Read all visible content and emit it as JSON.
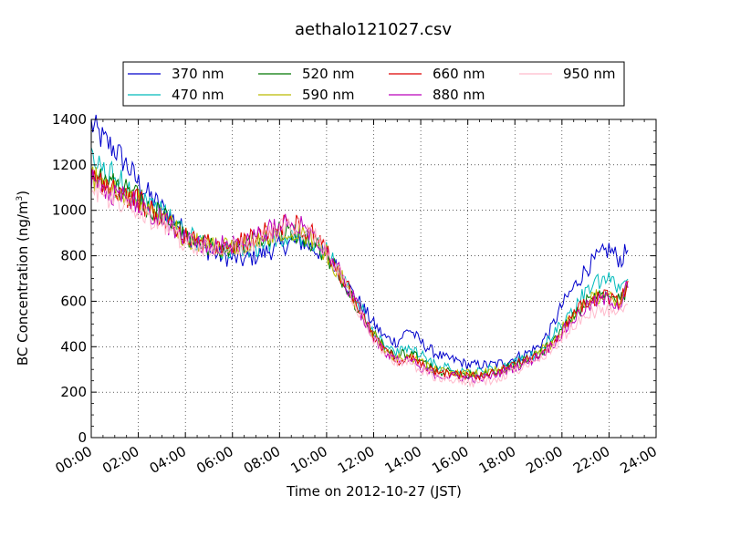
{
  "chart_data": {
    "type": "line",
    "title": "aethalo121027.csv",
    "xlabel": "Time on 2012-10-27 (JST)",
    "ylabel_main": "BC Concentration (ng/m",
    "ylabel_sup": "3",
    "ylabel_close": ")",
    "xlim_hours": [
      0,
      24
    ],
    "ylim": [
      0,
      1400
    ],
    "grid": true,
    "legend_position": "top-center",
    "x_ticks": [
      "00:00",
      "02:00",
      "04:00",
      "06:00",
      "08:00",
      "10:00",
      "12:00",
      "14:00",
      "16:00",
      "18:00",
      "20:00",
      "22:00",
      "24:00"
    ],
    "y_ticks": [
      "0",
      "200",
      "400",
      "600",
      "800",
      "1000",
      "1200",
      "1400"
    ],
    "x_hours": [
      0,
      0.5,
      1,
      1.5,
      2,
      2.5,
      3,
      3.5,
      4,
      4.5,
      5,
      5.5,
      6,
      6.5,
      7,
      7.5,
      8,
      8.5,
      9,
      9.5,
      10,
      10.5,
      11,
      11.5,
      12,
      12.5,
      13,
      13.5,
      14,
      14.5,
      15,
      15.5,
      16,
      16.5,
      17,
      17.5,
      18,
      18.5,
      19,
      19.5,
      20,
      20.5,
      21,
      21.5,
      22,
      22.5,
      22.8
    ],
    "series": [
      {
        "name": "370 nm",
        "color": "#0000cc",
        "values": [
          1380,
          1310,
          1270,
          1200,
          1120,
          1060,
          1010,
          960,
          900,
          860,
          820,
          800,
          790,
          780,
          800,
          820,
          840,
          860,
          860,
          830,
          800,
          740,
          650,
          580,
          500,
          440,
          420,
          480,
          420,
          380,
          350,
          340,
          320,
          320,
          320,
          330,
          350,
          370,
          400,
          470,
          580,
          660,
          740,
          790,
          830,
          780,
          830
        ]
      },
      {
        "name": "470 nm",
        "color": "#00bbbb",
        "values": [
          1220,
          1180,
          1150,
          1110,
          1070,
          1030,
          990,
          950,
          890,
          870,
          850,
          830,
          820,
          820,
          840,
          860,
          880,
          890,
          890,
          860,
          820,
          740,
          640,
          560,
          470,
          400,
          370,
          400,
          370,
          330,
          310,
          300,
          290,
          290,
          300,
          310,
          330,
          350,
          380,
          430,
          500,
          570,
          640,
          680,
          690,
          660,
          720
        ]
      },
      {
        "name": "520 nm",
        "color": "#007700",
        "values": [
          1170,
          1140,
          1110,
          1080,
          1050,
          1010,
          980,
          940,
          880,
          860,
          840,
          830,
          830,
          840,
          860,
          880,
          900,
          910,
          890,
          850,
          800,
          720,
          630,
          540,
          450,
          390,
          360,
          370,
          340,
          300,
          290,
          280,
          280,
          280,
          290,
          300,
          320,
          340,
          370,
          410,
          480,
          540,
          590,
          620,
          620,
          600,
          660
        ]
      },
      {
        "name": "590 nm",
        "color": "#bbbb00",
        "values": [
          1150,
          1120,
          1090,
          1060,
          1040,
          1000,
          970,
          930,
          880,
          860,
          850,
          840,
          840,
          850,
          870,
          890,
          910,
          920,
          900,
          860,
          810,
          730,
          640,
          540,
          450,
          390,
          350,
          360,
          330,
          300,
          290,
          280,
          280,
          280,
          290,
          300,
          320,
          340,
          370,
          410,
          480,
          540,
          590,
          620,
          620,
          600,
          670
        ]
      },
      {
        "name": "660 nm",
        "color": "#dd0000",
        "values": [
          1150,
          1120,
          1090,
          1060,
          1040,
          1000,
          970,
          930,
          880,
          860,
          850,
          850,
          850,
          860,
          880,
          910,
          930,
          950,
          930,
          880,
          820,
          730,
          640,
          540,
          440,
          380,
          340,
          350,
          320,
          290,
          280,
          280,
          270,
          270,
          280,
          300,
          320,
          340,
          370,
          410,
          470,
          540,
          590,
          620,
          620,
          590,
          690
        ]
      },
      {
        "name": "880 nm",
        "color": "#bb00bb",
        "values": [
          1130,
          1100,
          1070,
          1050,
          1030,
          990,
          960,
          920,
          880,
          860,
          850,
          850,
          850,
          860,
          880,
          910,
          930,
          950,
          940,
          890,
          830,
          740,
          640,
          540,
          440,
          380,
          340,
          340,
          310,
          280,
          270,
          270,
          260,
          260,
          270,
          290,
          310,
          330,
          360,
          400,
          460,
          520,
          570,
          600,
          610,
          580,
          680
        ]
      },
      {
        "name": "950 nm",
        "color": "#ffbbcc",
        "values": [
          1090,
          1070,
          1040,
          1020,
          1000,
          960,
          940,
          900,
          860,
          840,
          830,
          830,
          830,
          840,
          860,
          890,
          910,
          930,
          920,
          880,
          820,
          730,
          630,
          530,
          430,
          370,
          330,
          330,
          300,
          270,
          260,
          250,
          240,
          240,
          250,
          270,
          290,
          310,
          340,
          380,
          440,
          500,
          540,
          560,
          560,
          540,
          620
        ]
      }
    ]
  }
}
